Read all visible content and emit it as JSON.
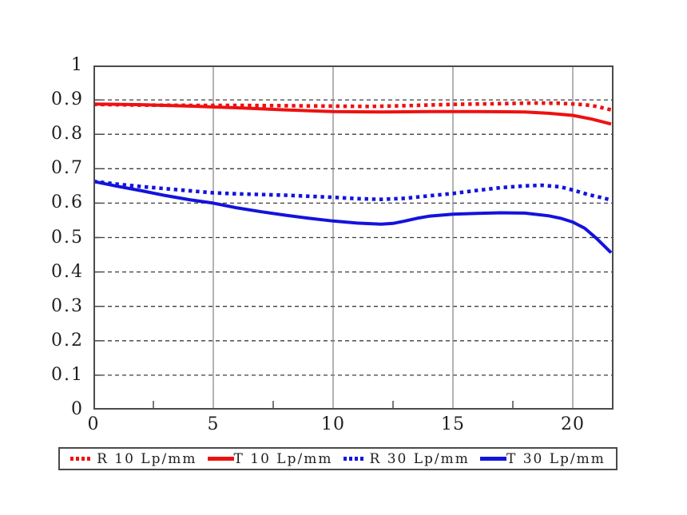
{
  "colors": {
    "red": "#ee1111",
    "blue": "#1313dd",
    "grid_dashed": "#3c3c3c",
    "grid_solid": "#8a8a8a",
    "border": "#4a4a4a",
    "text": "#1f1f1f"
  },
  "chart_data": {
    "type": "line",
    "title": "",
    "xlabel": "",
    "ylabel": "",
    "xlim": [
      0,
      21.7
    ],
    "ylim": [
      0,
      1
    ],
    "x_tick_labels": [
      "0",
      "5",
      "10",
      "15",
      "20"
    ],
    "x_tick_values": [
      0,
      5,
      10,
      15,
      20
    ],
    "x_minor_ticks": [
      2.5,
      7.5,
      12.5,
      17.5
    ],
    "x_gridlines": [
      5,
      10,
      15,
      20
    ],
    "y_tick_labels": [
      "0",
      "0.1",
      "0.2",
      "0.3",
      "0.4",
      "0.5",
      "0.6",
      "0.7",
      "0.8",
      "0.9",
      "1"
    ],
    "y_tick_values": [
      0,
      0.1,
      0.2,
      0.3,
      0.4,
      0.5,
      0.6,
      0.7,
      0.8,
      0.9,
      1
    ],
    "y_gridlines": [
      0.1,
      0.2,
      0.3,
      0.4,
      0.5,
      0.6,
      0.7,
      0.8,
      0.9
    ],
    "grid": "horizontal-dashed, vertical-solid",
    "legend_position": "bottom",
    "series": [
      {
        "name": "R 10 Lp/mm",
        "color": "#ee1111",
        "style": "dotted",
        "points": [
          [
            0,
            0.887
          ],
          [
            2,
            0.885
          ],
          [
            4,
            0.884
          ],
          [
            6,
            0.884
          ],
          [
            8,
            0.883
          ],
          [
            10,
            0.882
          ],
          [
            11.5,
            0.881
          ],
          [
            13,
            0.883
          ],
          [
            15,
            0.887
          ],
          [
            17,
            0.889
          ],
          [
            18.5,
            0.891
          ],
          [
            19.5,
            0.89
          ],
          [
            20.5,
            0.886
          ],
          [
            21,
            0.881
          ],
          [
            21.6,
            0.871
          ]
        ]
      },
      {
        "name": "T 10 Lp/mm",
        "color": "#ee1111",
        "style": "solid",
        "points": [
          [
            0,
            0.888
          ],
          [
            2,
            0.886
          ],
          [
            4,
            0.882
          ],
          [
            6,
            0.877
          ],
          [
            8,
            0.871
          ],
          [
            10,
            0.866
          ],
          [
            12,
            0.865
          ],
          [
            14,
            0.866
          ],
          [
            16,
            0.866
          ],
          [
            18,
            0.865
          ],
          [
            19,
            0.861
          ],
          [
            20,
            0.855
          ],
          [
            20.8,
            0.844
          ],
          [
            21.6,
            0.83
          ]
        ]
      },
      {
        "name": "R 30 Lp/mm",
        "color": "#1313dd",
        "style": "dotted",
        "points": [
          [
            0,
            0.663
          ],
          [
            1,
            0.655
          ],
          [
            2,
            0.648
          ],
          [
            3,
            0.642
          ],
          [
            4,
            0.636
          ],
          [
            5,
            0.63
          ],
          [
            6,
            0.627
          ],
          [
            7,
            0.625
          ],
          [
            8,
            0.623
          ],
          [
            9,
            0.62
          ],
          [
            10,
            0.617
          ],
          [
            11,
            0.613
          ],
          [
            12,
            0.611
          ],
          [
            13,
            0.614
          ],
          [
            14,
            0.621
          ],
          [
            15,
            0.628
          ],
          [
            16,
            0.637
          ],
          [
            17,
            0.645
          ],
          [
            18,
            0.65
          ],
          [
            18.7,
            0.652
          ],
          [
            19.5,
            0.647
          ],
          [
            20,
            0.638
          ],
          [
            20.7,
            0.624
          ],
          [
            21.2,
            0.616
          ],
          [
            21.6,
            0.609
          ]
        ]
      },
      {
        "name": "T 30 Lp/mm",
        "color": "#1313dd",
        "style": "solid",
        "points": [
          [
            0,
            0.663
          ],
          [
            1,
            0.649
          ],
          [
            2,
            0.636
          ],
          [
            3,
            0.622
          ],
          [
            4,
            0.61
          ],
          [
            5,
            0.6
          ],
          [
            6,
            0.586
          ],
          [
            7,
            0.575
          ],
          [
            8,
            0.565
          ],
          [
            9,
            0.556
          ],
          [
            10,
            0.548
          ],
          [
            11,
            0.542
          ],
          [
            12,
            0.539
          ],
          [
            12.5,
            0.541
          ],
          [
            13,
            0.548
          ],
          [
            13.5,
            0.556
          ],
          [
            14,
            0.562
          ],
          [
            15,
            0.568
          ],
          [
            16,
            0.57
          ],
          [
            17,
            0.572
          ],
          [
            18,
            0.571
          ],
          [
            19,
            0.563
          ],
          [
            19.5,
            0.556
          ],
          [
            20,
            0.545
          ],
          [
            20.5,
            0.527
          ],
          [
            21,
            0.497
          ],
          [
            21.6,
            0.456
          ]
        ]
      }
    ]
  }
}
